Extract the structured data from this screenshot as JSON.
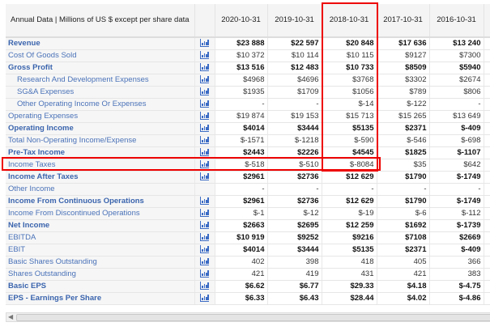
{
  "header": {
    "title": "Annual Data | Millions of US $ except per share data",
    "columns": [
      "2020-10-31",
      "2019-10-31",
      "2018-10-31",
      "2017-10-31",
      "2016-10-31",
      ""
    ]
  },
  "rows": [
    {
      "label": "Revenue",
      "bold": true,
      "values": [
        "$23 888",
        "$22 597",
        "$20 848",
        "$17 636",
        "$13 240",
        ""
      ]
    },
    {
      "label": "Cost Of Goods Sold",
      "values": [
        "$10 372",
        "$10 114",
        "$10 115",
        "$9127",
        "$7300",
        ""
      ]
    },
    {
      "label": "Gross Profit",
      "bold": true,
      "values": [
        "$13 516",
        "$12 483",
        "$10 733",
        "$8509",
        "$5940",
        ""
      ]
    },
    {
      "label": "Research And Development Expenses",
      "indent": true,
      "values": [
        "$4968",
        "$4696",
        "$3768",
        "$3302",
        "$2674",
        ""
      ]
    },
    {
      "label": "SG&A Expenses",
      "indent": true,
      "values": [
        "$1935",
        "$1709",
        "$1056",
        "$789",
        "$806",
        ""
      ]
    },
    {
      "label": "Other Operating Income Or Expenses",
      "indent": true,
      "values": [
        "-",
        "-",
        "$-14",
        "$-122",
        "-",
        ""
      ]
    },
    {
      "label": "Operating Expenses",
      "values": [
        "$19 874",
        "$19 153",
        "$15 713",
        "$15 265",
        "$13 649",
        ""
      ]
    },
    {
      "label": "Operating Income",
      "bold": true,
      "values": [
        "$4014",
        "$3444",
        "$5135",
        "$2371",
        "$-409",
        ""
      ]
    },
    {
      "label": "Total Non-Operating Income/Expense",
      "values": [
        "$-1571",
        "$-1218",
        "$-590",
        "$-546",
        "$-698",
        ""
      ]
    },
    {
      "label": "Pre-Tax Income",
      "bold": true,
      "values": [
        "$2443",
        "$2226",
        "$4545",
        "$1825",
        "$-1107",
        ""
      ]
    },
    {
      "label": "Income Taxes",
      "values": [
        "$-518",
        "$-510",
        "$-8084",
        "$35",
        "$642",
        ""
      ]
    },
    {
      "label": "Income After Taxes",
      "bold": true,
      "values": [
        "$2961",
        "$2736",
        "$12 629",
        "$1790",
        "$-1749",
        ""
      ]
    },
    {
      "label": "Other Income",
      "noicon": true,
      "values": [
        "-",
        "-",
        "-",
        "-",
        "-",
        ""
      ]
    },
    {
      "label": "Income From Continuous Operations",
      "bold": true,
      "values": [
        "$2961",
        "$2736",
        "$12 629",
        "$1790",
        "$-1749",
        ""
      ]
    },
    {
      "label": "Income From Discontinued Operations",
      "values": [
        "$-1",
        "$-12",
        "$-19",
        "$-6",
        "$-112",
        ""
      ]
    },
    {
      "label": "Net Income",
      "bold": true,
      "values": [
        "$2663",
        "$2695",
        "$12 259",
        "$1692",
        "$-1739",
        ""
      ]
    },
    {
      "label": "EBITDA",
      "boldvals": true,
      "values": [
        "$10 919",
        "$9252",
        "$9216",
        "$7108",
        "$2669",
        ""
      ]
    },
    {
      "label": "EBIT",
      "boldvals": true,
      "values": [
        "$4014",
        "$3444",
        "$5135",
        "$2371",
        "$-409",
        ""
      ]
    },
    {
      "label": "Basic Shares Outstanding",
      "values": [
        "402",
        "398",
        "418",
        "405",
        "366",
        ""
      ]
    },
    {
      "label": "Shares Outstanding",
      "values": [
        "421",
        "419",
        "431",
        "421",
        "383",
        ""
      ]
    },
    {
      "label": "Basic EPS",
      "bold": true,
      "values": [
        "$6.62",
        "$6.77",
        "$29.33",
        "$4.18",
        "$-4.75",
        ""
      ]
    },
    {
      "label": "EPS - Earnings Per Share",
      "bold": true,
      "values": [
        "$6.33",
        "$6.43",
        "$28.44",
        "$4.02",
        "$-4.86",
        ""
      ]
    }
  ],
  "colors": {
    "highlight": "#e00000",
    "label": "#4a72b8"
  }
}
